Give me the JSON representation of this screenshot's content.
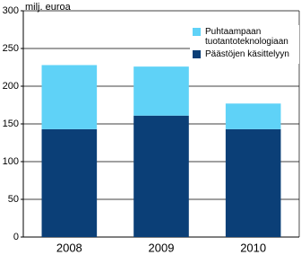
{
  "chart_data": {
    "type": "stacked_bar",
    "y_label": "milj. euroa",
    "categories": [
      "2008",
      "2009",
      "2010"
    ],
    "series": [
      {
        "name": "Päästöjen käsittelyyn",
        "color": "#0b3f77",
        "values": [
          143,
          161,
          143
        ]
      },
      {
        "name": "Puhtaampaan tuotantoteknologiaan",
        "color": "#5fd2f7",
        "values": [
          85,
          65,
          34
        ]
      }
    ],
    "ylim": [
      0,
      300
    ],
    "yticks": [
      0,
      50,
      100,
      150,
      200,
      250,
      300
    ],
    "grid": true,
    "legend": "upper right"
  }
}
